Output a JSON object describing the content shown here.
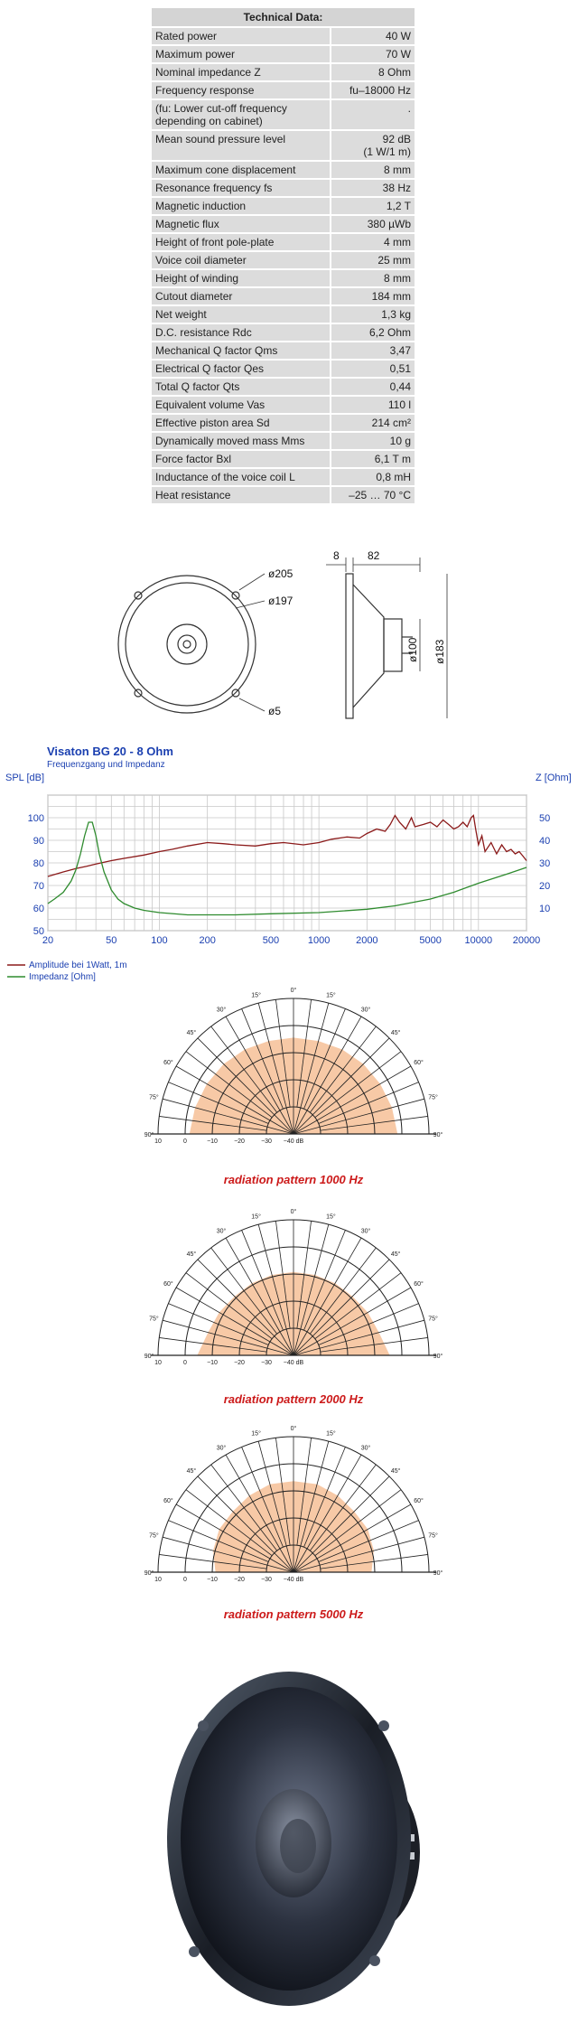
{
  "tech": {
    "title": "Technical Data:",
    "rows": [
      {
        "label": "Rated power",
        "value": "40 W"
      },
      {
        "label": "Maximum power",
        "value": "70 W"
      },
      {
        "label": "Nominal impedance Z",
        "value": "8 Ohm"
      },
      {
        "label": "Frequency response",
        "value": "fu–18000 Hz"
      },
      {
        "label": "(fu: Lower cut-off frequency depending on cabinet)",
        "value": "."
      },
      {
        "label": "Mean sound pressure level",
        "value": "92 dB\n(1 W/1 m)"
      },
      {
        "label": "Maximum cone displacement",
        "value": "8 mm"
      },
      {
        "label": "Resonance frequency fs",
        "value": "38 Hz"
      },
      {
        "label": "Magnetic induction",
        "value": "1,2 T"
      },
      {
        "label": "Magnetic flux",
        "value": "380 µWb"
      },
      {
        "label": "Height of front pole-plate",
        "value": "4 mm"
      },
      {
        "label": "Voice coil diameter",
        "value": "25 mm"
      },
      {
        "label": "Height of winding",
        "value": "8 mm"
      },
      {
        "label": "Cutout diameter",
        "value": "184 mm"
      },
      {
        "label": "Net weight",
        "value": "1,3 kg"
      },
      {
        "label": "D.C. resistance Rdc",
        "value": "6,2 Ohm"
      },
      {
        "label": "Mechanical Q factor Qms",
        "value": "3,47"
      },
      {
        "label": "Electrical Q factor Qes",
        "value": "0,51"
      },
      {
        "label": "Total Q factor Qts",
        "value": "0,44"
      },
      {
        "label": "Equivalent volume Vas",
        "value": "110 l"
      },
      {
        "label": "Effective piston area Sd",
        "value": "214 cm²"
      },
      {
        "label": "Dynamically moved mass Mms",
        "value": "10 g"
      },
      {
        "label": "Force factor Bxl",
        "value": "6,1 T m"
      },
      {
        "label": "Inductance of the voice coil L",
        "value": "0,8 mH"
      },
      {
        "label": "Heat resistance",
        "value": "–25 … 70 °C"
      }
    ]
  },
  "dimensions": {
    "outer": "ø205",
    "inner": "ø197",
    "hole": "ø5",
    "flange": "8",
    "depth": "82",
    "magnet": "ø100",
    "basket": "ø183"
  },
  "chart_data": {
    "type": "line",
    "title": "Visaton BG 20 - 8 Ohm",
    "subtitle": "Frequenzgang und Impedanz",
    "ylabel": "SPL [dB]",
    "y2label": "Z [Ohm]",
    "xscale": "log",
    "xlim": [
      20,
      20000
    ],
    "ylim": [
      50,
      110
    ],
    "y2lim": [
      0,
      60
    ],
    "xticks": [
      "20",
      "50",
      "100",
      "200",
      "500",
      "1000",
      "2000",
      "5000",
      "10000",
      "20000"
    ],
    "xtick_values": [
      20,
      50,
      100,
      200,
      500,
      1000,
      2000,
      5000,
      10000,
      20000
    ],
    "yticks": [
      "50",
      "60",
      "70",
      "80",
      "90",
      "100"
    ],
    "ytick_values": [
      50,
      60,
      70,
      80,
      90,
      100
    ],
    "y2ticks": [
      "10",
      "20",
      "30",
      "40",
      "50"
    ],
    "y2tick_values": [
      10,
      20,
      30,
      40,
      50
    ],
    "grid": true,
    "series": [
      {
        "name": "Amplitude bei 1Watt, 1m",
        "color": "#8b1a1a",
        "axis": "left",
        "x": [
          20,
          25,
          30,
          35,
          40,
          50,
          60,
          80,
          100,
          120,
          150,
          200,
          250,
          300,
          400,
          500,
          600,
          800,
          1000,
          1200,
          1500,
          1800,
          2000,
          2300,
          2600,
          2800,
          3000,
          3200,
          3500,
          3800,
          4000,
          4500,
          5000,
          5500,
          6000,
          6500,
          7000,
          7500,
          8000,
          8500,
          9000,
          9300,
          9600,
          10000,
          10500,
          11000,
          12000,
          13000,
          14000,
          15000,
          16000,
          17000,
          18000,
          19000,
          20000
        ],
        "y": [
          74,
          76,
          77.5,
          78.5,
          79.5,
          81,
          82,
          83.5,
          85,
          86,
          87.5,
          89,
          88.5,
          88,
          87.5,
          88.5,
          89,
          88,
          89,
          90.5,
          91.5,
          91,
          93,
          95,
          94,
          97,
          101,
          98,
          95,
          100,
          96,
          97,
          98,
          96,
          99,
          97,
          95,
          96,
          98,
          96,
          100,
          101,
          95,
          88,
          92,
          85,
          89,
          84,
          88,
          85,
          86,
          84,
          85,
          83,
          81
        ]
      },
      {
        "name": "Impedanz [Ohm]",
        "color": "#2e8b2e",
        "axis": "right",
        "x": [
          20,
          22,
          25,
          28,
          30,
          32,
          34,
          36,
          38,
          40,
          42,
          45,
          50,
          55,
          60,
          70,
          80,
          100,
          150,
          200,
          300,
          500,
          1000,
          2000,
          3000,
          5000,
          7000,
          10000,
          15000,
          20000
        ],
        "y": [
          12,
          14,
          17,
          22,
          27,
          34,
          42,
          48,
          48,
          42,
          34,
          26,
          18,
          14,
          12,
          10,
          9,
          8,
          7,
          7,
          7,
          7.5,
          8,
          9.5,
          11,
          14,
          17,
          21,
          25,
          28
        ]
      }
    ]
  },
  "polar": {
    "angles": [
      "90°",
      "75°",
      "60°",
      "45°",
      "30°",
      "15°",
      "0°",
      "15°",
      "30°",
      "45°",
      "60°",
      "75°",
      "90°"
    ],
    "db_labels": [
      "10",
      "0",
      "−10",
      "−20",
      "−30",
      "−40 dB"
    ],
    "captions": [
      "radiation pattern 1000 Hz",
      "radiation pattern 2000 Hz",
      "radiation pattern 5000 Hz"
    ],
    "fill_color": "#f7c9a6",
    "patterns_db": [
      [
        0,
        -0.8,
        -1.5,
        -2,
        -2.5,
        -3,
        -3,
        -3,
        -2.5,
        -2,
        -1.5,
        -0.8,
        0
      ],
      [
        -3,
        -6,
        -7,
        -8,
        -8,
        -8,
        -8,
        -8,
        -8,
        -8,
        -7,
        -6,
        -3
      ],
      [
        -10,
        -8,
        -7,
        -7,
        -6,
        -5,
        -5,
        -5,
        -6,
        -7,
        -7,
        -8,
        -10
      ]
    ]
  }
}
